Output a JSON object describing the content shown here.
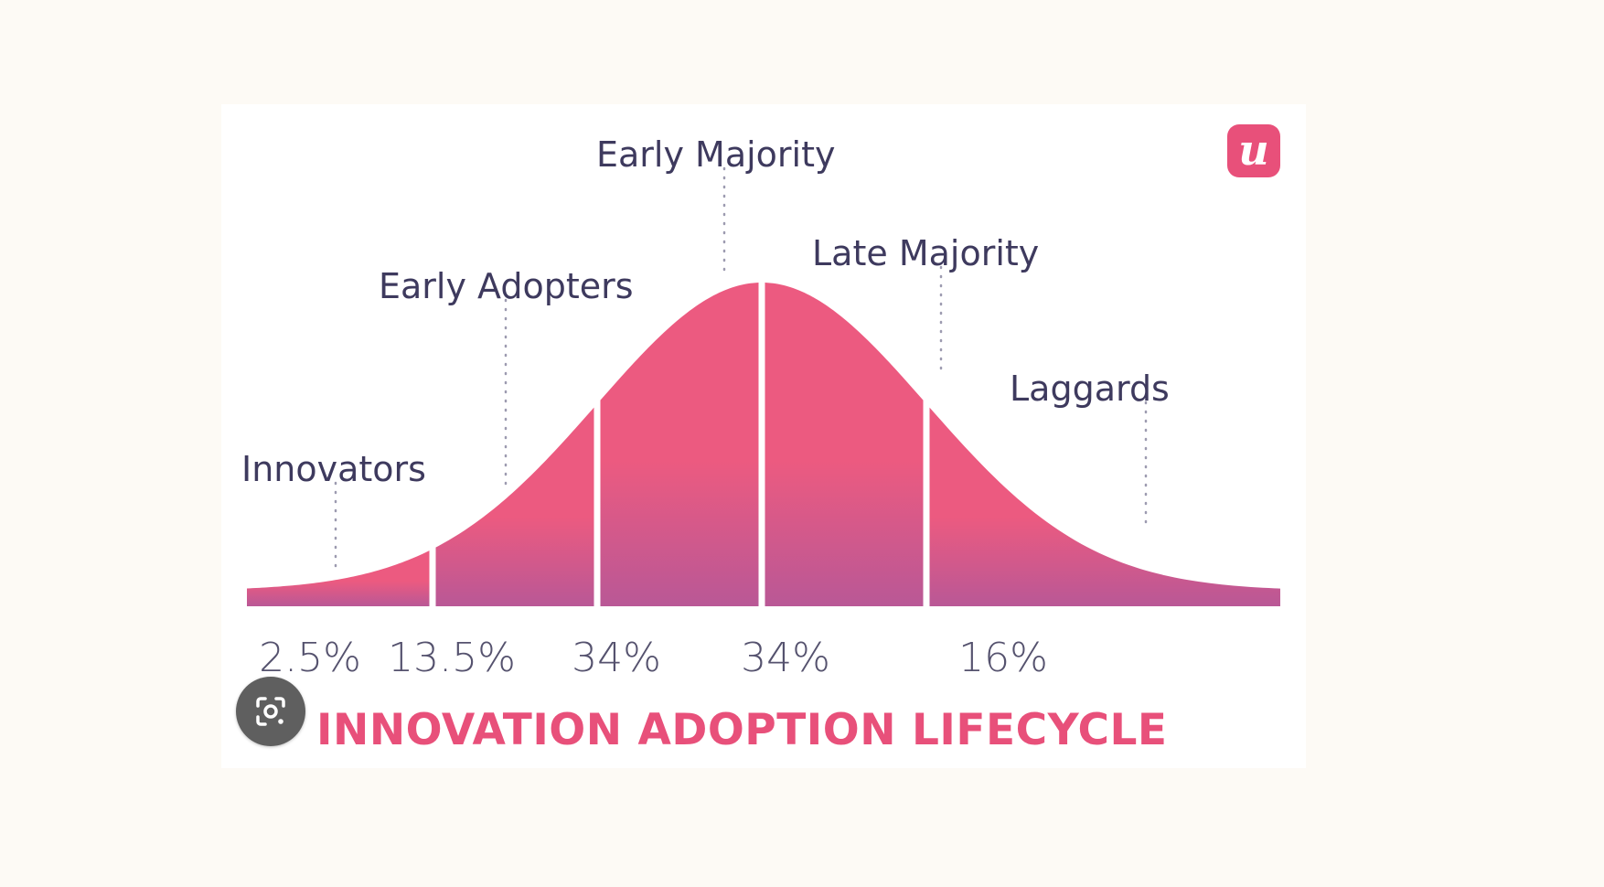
{
  "brand": {
    "logo_letter": "u",
    "logo_color": "#e8507a"
  },
  "colors": {
    "curve_top": "#ec5a80",
    "curve_bottom": "#b95896",
    "label_text": "#3e3a5e",
    "title": "#e8507a",
    "background": "#fdfaf5"
  },
  "lens_button": {
    "icon": "google-lens-icon"
  },
  "chart_data": {
    "type": "area",
    "title": "INNOVATION ADOPTION LIFECYCLE",
    "xlabel": "",
    "ylabel": "",
    "grid": false,
    "segments": [
      {
        "name": "Innovators",
        "percent": "2.5%",
        "value": 2.5
      },
      {
        "name": "Early Adopters",
        "percent": "13.5%",
        "value": 13.5
      },
      {
        "name": "Early Majority",
        "percent": "34%",
        "value": 34
      },
      {
        "name": "Late Majority",
        "percent": "34%",
        "value": 34
      },
      {
        "name": "Laggards",
        "percent": "16%",
        "value": 16
      }
    ]
  }
}
